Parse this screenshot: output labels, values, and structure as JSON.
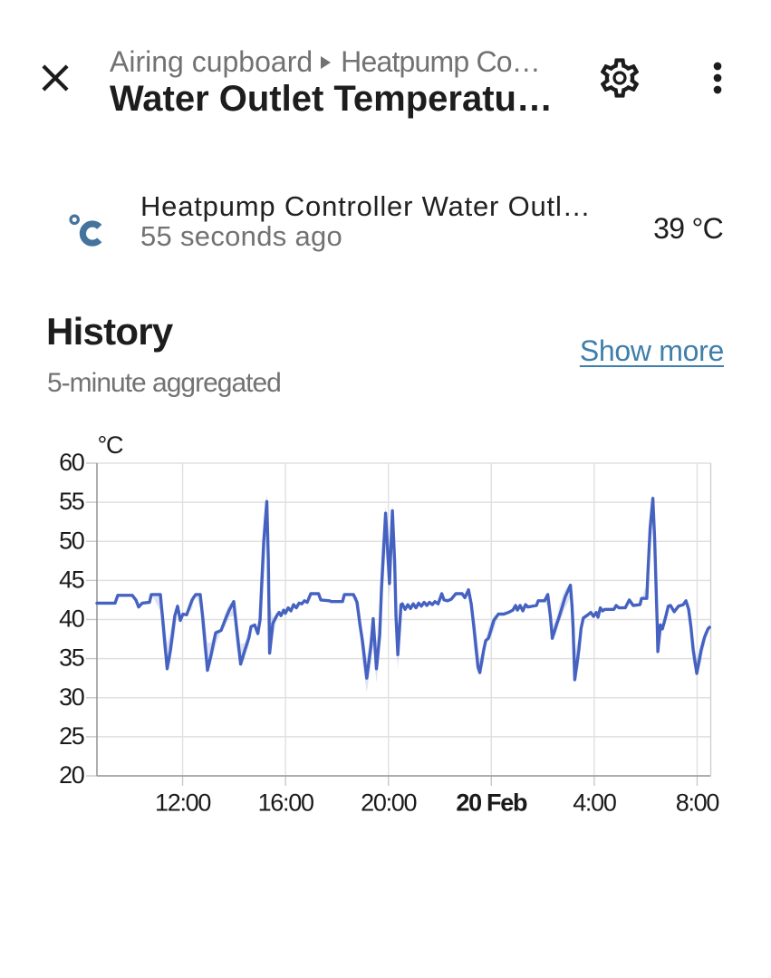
{
  "colors": {
    "text_primary": "#1d1d1d",
    "text_secondary": "#727272",
    "link": "#3f7fab",
    "entity_icon": "#44739e",
    "line": "#4562c1",
    "band": "rgba(69,98,193,0.18)",
    "grid": "#e0e0e0",
    "axis": "#999999",
    "tick": "#c9c9c9"
  },
  "header": {
    "close_icon": "close-icon",
    "breadcrumb": {
      "area": "Airing cupboard",
      "device": "Heatpump Co…"
    },
    "title": "Water Outlet Temperatu…",
    "settings_icon": "cog-outline-icon",
    "menu_icon": "dots-vertical-icon"
  },
  "sensor": {
    "icon": "temperature-celsius-icon",
    "name": "Heatpump Controller Water Outl…",
    "last_changed": "55 seconds ago",
    "value": "39 °C"
  },
  "history": {
    "title": "History",
    "subtitle": "5-minute aggregated",
    "show_more": "Show more"
  },
  "chart_data": {
    "type": "line",
    "title": "",
    "xlabel": "",
    "ylabel": "°C",
    "unit": "°C",
    "ylim": [
      20,
      60
    ],
    "yticks": [
      20,
      25,
      30,
      35,
      40,
      45,
      50,
      55,
      60
    ],
    "xlim_hours_from_midnight": [
      -15.33,
      8.53
    ],
    "xticks": [
      {
        "h": -12,
        "label": "12:00",
        "bold": false
      },
      {
        "h": -8,
        "label": "16:00",
        "bold": false
      },
      {
        "h": -4,
        "label": "20:00",
        "bold": false
      },
      {
        "h": 0,
        "label": "20 Feb",
        "bold": true
      },
      {
        "h": 4,
        "label": "4:00",
        "bold": false
      },
      {
        "h": 8,
        "label": "8:00",
        "bold": false
      }
    ],
    "grid": true,
    "legend": false,
    "series": [
      {
        "name": "Heatpump Controller Water Outlet Temperature",
        "aggregation": "5-minute mean with min/max band",
        "points": [
          [
            -15.329,
            42.1
          ],
          [
            -14.625,
            42.1
          ],
          [
            -14.519,
            43.1
          ],
          [
            -13.956,
            43.1
          ],
          [
            -13.815,
            42.5
          ],
          [
            -13.709,
            41.6
          ],
          [
            -13.568,
            42.1
          ],
          [
            -13.286,
            42.2
          ],
          [
            -13.216,
            43.2
          ],
          [
            -12.864,
            43.2
          ],
          [
            -12.758,
            39.5
          ],
          [
            -12.6,
            33.7
          ],
          [
            -12.476,
            36.0
          ],
          [
            -12.3,
            40.5
          ],
          [
            -12.194,
            41.7
          ],
          [
            -12.089,
            39.9
          ],
          [
            -11.983,
            40.7
          ],
          [
            -11.842,
            40.6
          ],
          [
            -11.631,
            42.5
          ],
          [
            -11.49,
            43.2
          ],
          [
            -11.314,
            43.2
          ],
          [
            -11.208,
            40.0
          ],
          [
            -11.032,
            33.5
          ],
          [
            -10.891,
            35.5
          ],
          [
            -10.715,
            38.3
          ],
          [
            -10.504,
            38.6
          ],
          [
            -10.363,
            39.8
          ],
          [
            -10.187,
            41.2
          ],
          [
            -10.011,
            42.3
          ],
          [
            -9.905,
            39.0
          ],
          [
            -9.746,
            34.3
          ],
          [
            -9.588,
            36.0
          ],
          [
            -9.429,
            37.6
          ],
          [
            -9.341,
            39.1
          ],
          [
            -9.2,
            39.3
          ],
          [
            -9.077,
            38.2
          ],
          [
            -8.989,
            40.0
          ],
          [
            -8.848,
            50.0
          ],
          [
            -8.725,
            55.1
          ],
          [
            -8.672,
            48.0
          ],
          [
            -8.619,
            35.7
          ],
          [
            -8.496,
            39.5
          ],
          [
            -8.32,
            40.6
          ],
          [
            -8.249,
            40.9
          ],
          [
            -8.179,
            40.5
          ],
          [
            -8.073,
            41.2
          ],
          [
            -8.003,
            40.8
          ],
          [
            -7.897,
            41.5
          ],
          [
            -7.791,
            41.1
          ],
          [
            -7.686,
            41.9
          ],
          [
            -7.58,
            41.5
          ],
          [
            -7.474,
            42.1
          ],
          [
            -7.369,
            42.0
          ],
          [
            -7.263,
            42.4
          ],
          [
            -7.157,
            42.2
          ],
          [
            -7.017,
            43.3
          ],
          [
            -6.717,
            43.3
          ],
          [
            -6.629,
            42.5
          ],
          [
            -6.294,
            42.4
          ],
          [
            -6.224,
            42.3
          ],
          [
            -5.784,
            42.3
          ],
          [
            -5.713,
            43.2
          ],
          [
            -5.361,
            43.2
          ],
          [
            -5.22,
            42.2
          ],
          [
            -5.114,
            39.5
          ],
          [
            -5.009,
            37.2
          ],
          [
            -4.843,
            32.5
          ],
          [
            -4.678,
            36.7
          ],
          [
            -4.593,
            40.1
          ],
          [
            -4.466,
            33.7
          ],
          [
            -4.34,
            38.0
          ],
          [
            -4.269,
            44.0
          ],
          [
            -4.111,
            53.6
          ],
          [
            -3.959,
            44.6
          ],
          [
            -3.846,
            53.9
          ],
          [
            -3.758,
            47.4
          ],
          [
            -3.706,
            40.4
          ],
          [
            -3.635,
            35.5
          ],
          [
            -3.512,
            41.9
          ],
          [
            -3.459,
            42.0
          ],
          [
            -3.353,
            41.3
          ],
          [
            -3.248,
            41.9
          ],
          [
            -3.142,
            41.4
          ],
          [
            -3.036,
            42.0
          ],
          [
            -2.931,
            41.5
          ],
          [
            -2.825,
            42.1
          ],
          [
            -2.719,
            41.7
          ],
          [
            -2.614,
            42.2
          ],
          [
            -2.508,
            41.8
          ],
          [
            -2.402,
            42.2
          ],
          [
            -2.297,
            41.9
          ],
          [
            -2.191,
            42.3
          ],
          [
            -2.068,
            42.0
          ],
          [
            -1.927,
            43.3
          ],
          [
            -1.839,
            42.5
          ],
          [
            -1.698,
            42.4
          ],
          [
            -1.557,
            42.6
          ],
          [
            -1.381,
            43.3
          ],
          [
            -1.134,
            43.3
          ],
          [
            -1.029,
            42.8
          ],
          [
            -0.888,
            43.8
          ],
          [
            -0.782,
            42.0
          ],
          [
            -0.676,
            39.0
          ],
          [
            -0.518,
            33.9
          ],
          [
            -0.447,
            33.2
          ],
          [
            -0.296,
            36.1
          ],
          [
            -0.218,
            37.3
          ],
          [
            -0.113,
            37.6
          ],
          [
            0.099,
            39.9
          ],
          [
            0.275,
            40.7
          ],
          [
            0.486,
            40.7
          ],
          [
            0.662,
            40.9
          ],
          [
            0.838,
            41.2
          ],
          [
            0.944,
            41.8
          ],
          [
            1.014,
            41.2
          ],
          [
            1.12,
            41.8
          ],
          [
            1.226,
            41.1
          ],
          [
            1.331,
            41.9
          ],
          [
            1.42,
            41.6
          ],
          [
            1.754,
            41.8
          ],
          [
            1.825,
            42.4
          ],
          [
            2.071,
            42.4
          ],
          [
            2.194,
            43.2
          ],
          [
            2.3,
            40.3
          ],
          [
            2.371,
            37.6
          ],
          [
            2.522,
            39.2
          ],
          [
            2.652,
            40.5
          ],
          [
            2.874,
            42.9
          ],
          [
            3.075,
            44.4
          ],
          [
            3.138,
            41.7
          ],
          [
            3.181,
            38.9
          ],
          [
            3.244,
            32.3
          ],
          [
            3.403,
            36.1
          ],
          [
            3.491,
            38.9
          ],
          [
            3.579,
            40.2
          ],
          [
            3.755,
            40.6
          ],
          [
            3.868,
            40.9
          ],
          [
            3.973,
            40.4
          ],
          [
            4.079,
            40.9
          ],
          [
            4.149,
            40.3
          ],
          [
            4.237,
            41.5
          ],
          [
            4.325,
            41.1
          ],
          [
            4.414,
            41.3
          ],
          [
            4.766,
            41.3
          ],
          [
            4.854,
            41.8
          ],
          [
            4.959,
            41.5
          ],
          [
            5.206,
            41.5
          ],
          [
            5.365,
            42.5
          ],
          [
            5.516,
            41.8
          ],
          [
            5.78,
            41.9
          ],
          [
            5.84,
            42.7
          ],
          [
            6.044,
            42.7
          ],
          [
            6.087,
            45.9
          ],
          [
            6.175,
            51.7
          ],
          [
            6.28,
            55.5
          ],
          [
            6.351,
            50.2
          ],
          [
            6.404,
            44.4
          ],
          [
            6.449,
            39.4
          ],
          [
            6.474,
            35.9
          ],
          [
            6.573,
            39.3
          ],
          [
            6.65,
            38.8
          ],
          [
            6.791,
            40.5
          ],
          [
            6.879,
            41.7
          ],
          [
            6.967,
            41.8
          ],
          [
            7.108,
            41.0
          ],
          [
            7.277,
            41.7
          ],
          [
            7.46,
            41.9
          ],
          [
            7.566,
            42.4
          ],
          [
            7.672,
            41.3
          ],
          [
            7.76,
            39.1
          ],
          [
            7.848,
            36.1
          ],
          [
            7.989,
            33.1
          ],
          [
            8.158,
            36.1
          ],
          [
            8.288,
            37.7
          ],
          [
            8.422,
            38.8
          ],
          [
            8.482,
            39.0
          ]
        ]
      }
    ]
  }
}
